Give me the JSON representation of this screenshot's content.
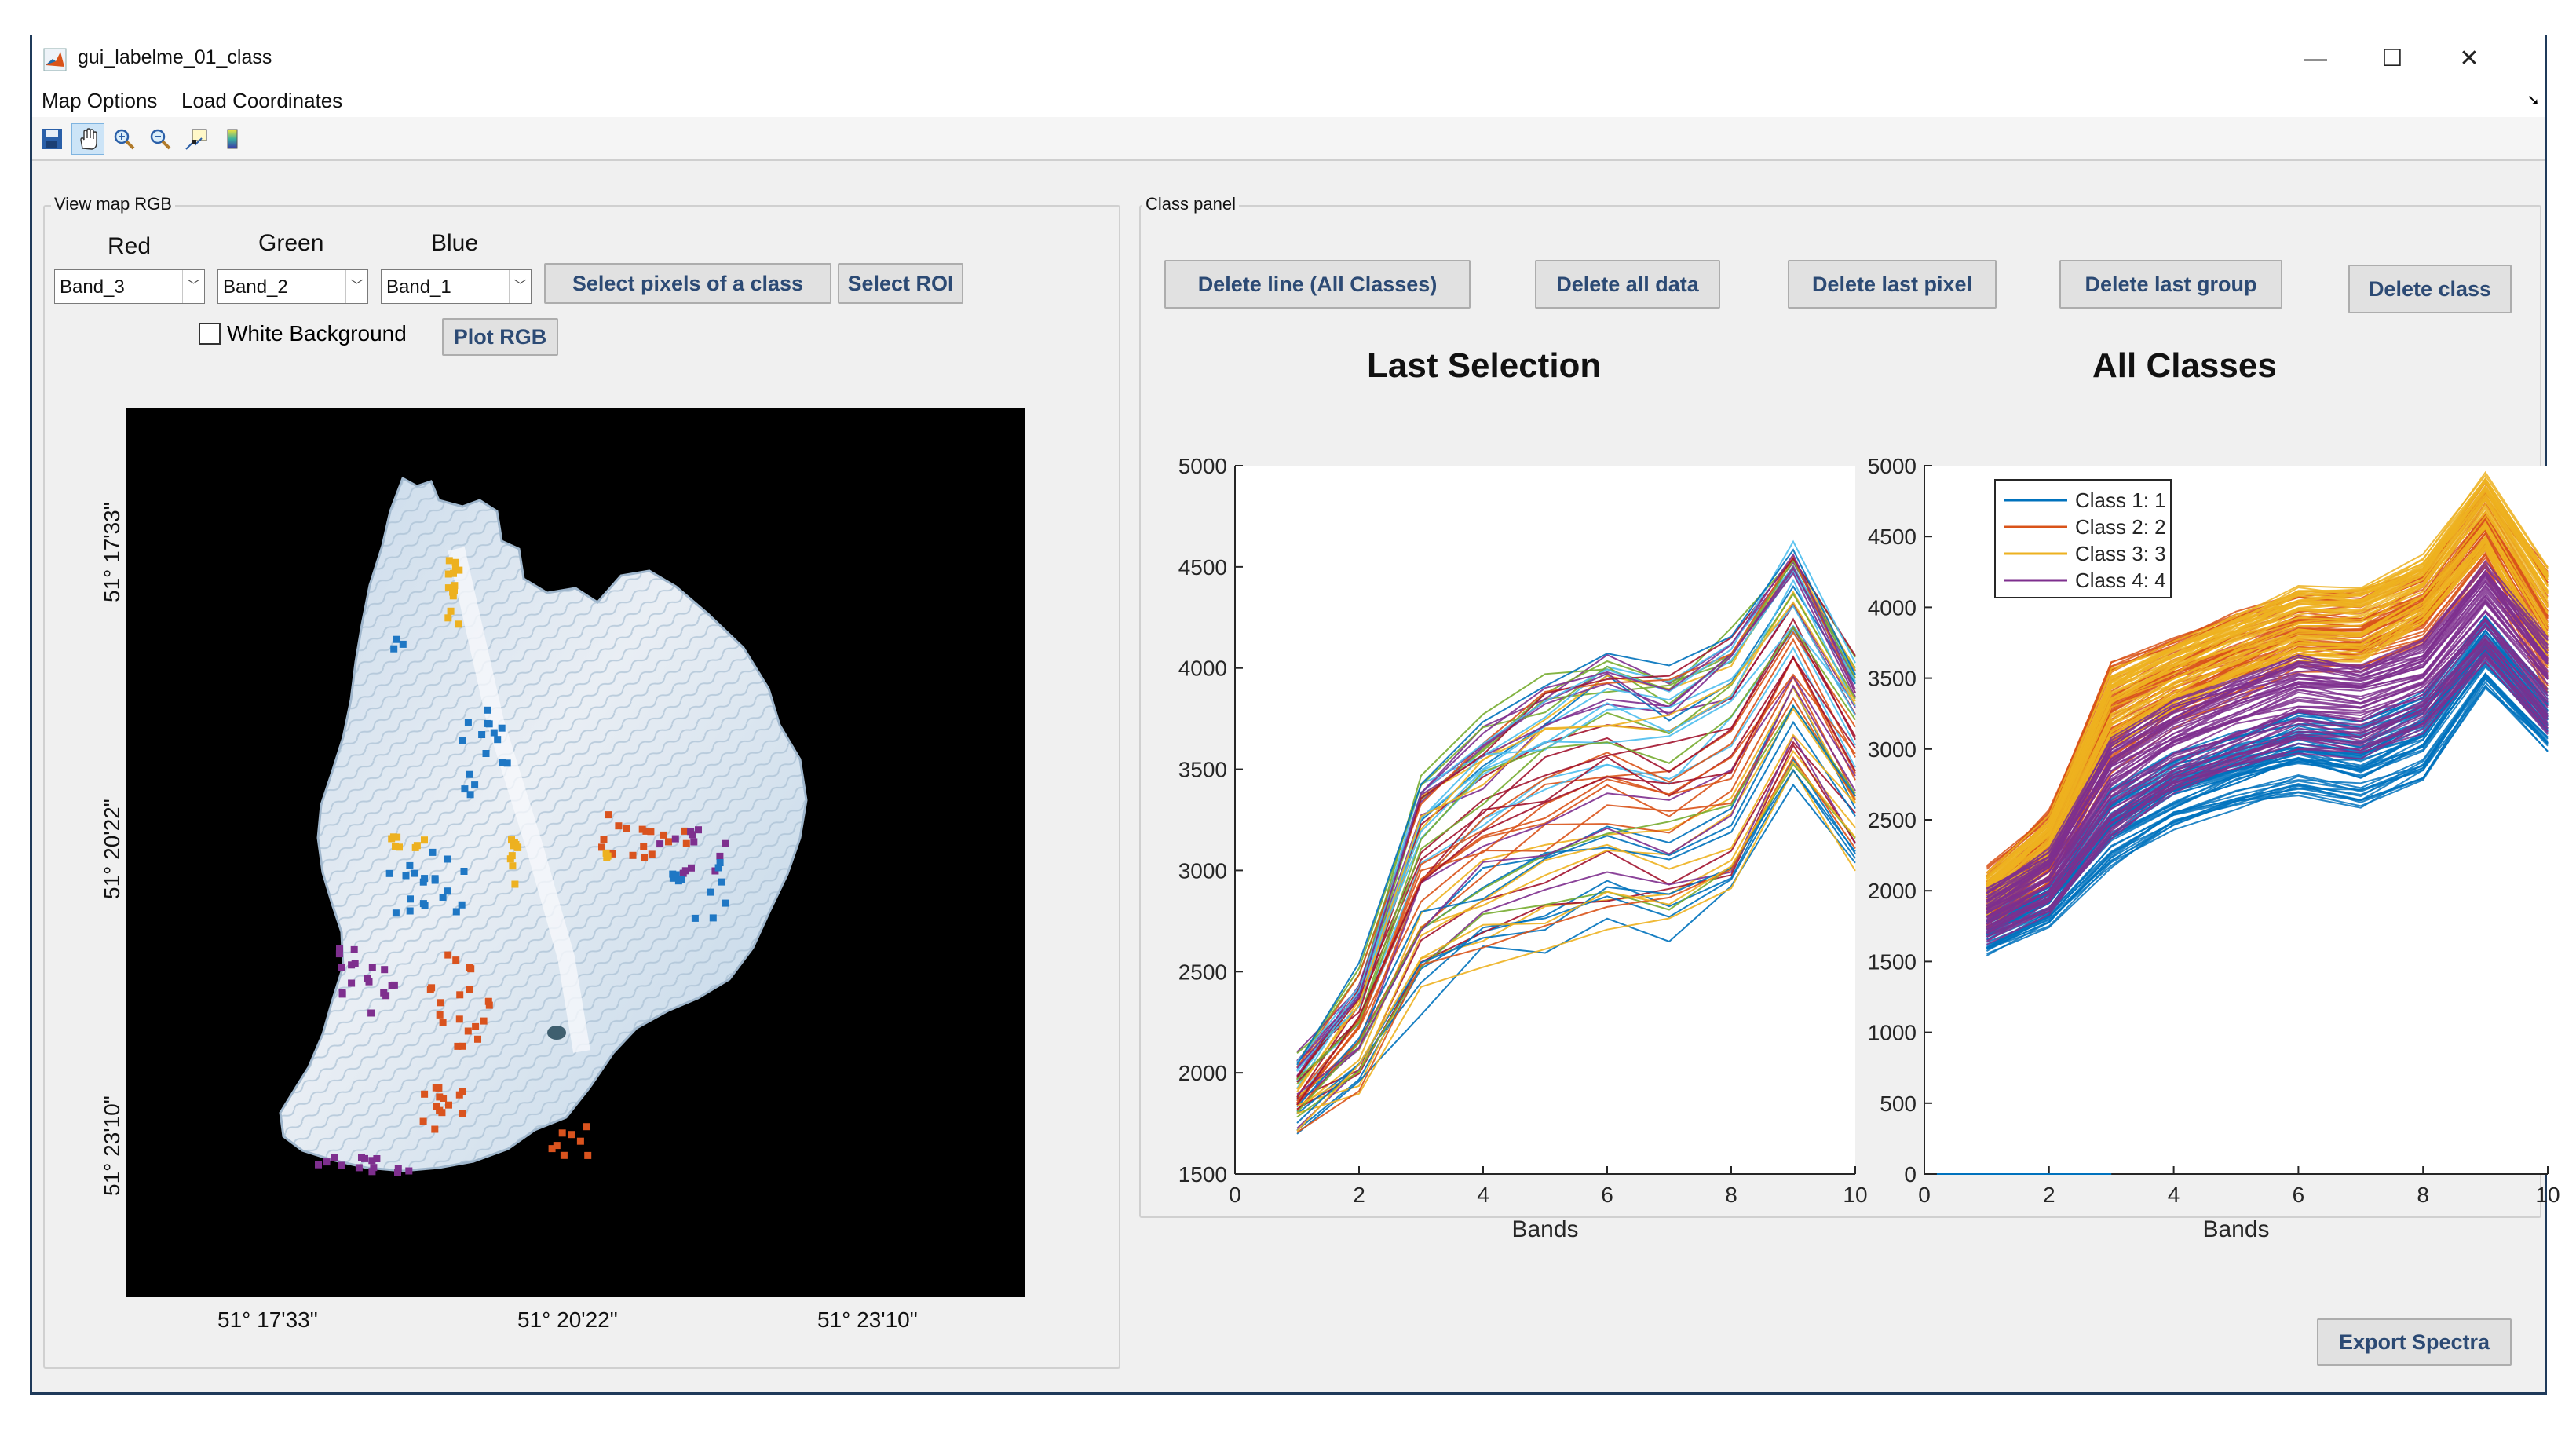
{
  "window": {
    "title": "gui_labelme_01_class",
    "controls": {
      "minimize": "—",
      "maximize": "☐",
      "close": "✕"
    }
  },
  "menu": {
    "items": [
      "Map Options",
      "Load Coordinates"
    ]
  },
  "toolbar": {
    "buttons": [
      "save-icon",
      "pan-hand-icon",
      "zoom-in-icon",
      "zoom-out-icon",
      "data-cursor-icon",
      "colorbar-icon"
    ]
  },
  "left_panel": {
    "title": "View map RGB",
    "red_label": "Red",
    "green_label": "Green",
    "blue_label": "Blue",
    "red_value": "Band_3",
    "green_value": "Band_2",
    "blue_value": "Band_1",
    "select_pixels_button": "Select pixels of a class",
    "select_roi_button": "Select ROI",
    "white_background_label": "White Background",
    "white_background_checked": false,
    "plot_rgb_button": "Plot RGB",
    "map": {
      "x_ticks": [
        "51° 17'33\"",
        "51° 20'22\"",
        "51° 23'10\""
      ],
      "y_ticks": [
        "51° 17'33\"",
        "51° 20'22\"",
        "51° 23'10\""
      ],
      "class_colors": [
        "#1f77c4",
        "#d9531e",
        "#edb120",
        "#7e2f8e"
      ]
    }
  },
  "class_panel": {
    "title": "Class panel",
    "buttons": {
      "delete_line": "Delete line (All Classes)",
      "delete_all": "Delete all data",
      "delete_last_pixel": "Delete last pixel",
      "delete_last_group": "Delete last group",
      "delete_class": "Delete class"
    },
    "export_button": "Export Spectra"
  },
  "chart_data": [
    {
      "type": "line",
      "title": "Last Selection",
      "xlabel": "Bands",
      "ylabel": "",
      "xlim": [
        0,
        10
      ],
      "ylim": [
        1500,
        5000
      ],
      "x_ticks": [
        0,
        2,
        4,
        6,
        8,
        10
      ],
      "y_ticks": [
        1500,
        2000,
        2500,
        3000,
        3500,
        4000,
        4500,
        5000
      ],
      "x": [
        1,
        2,
        3,
        4,
        5,
        6,
        7,
        8,
        9,
        10
      ],
      "series_summary": {
        "count": "many (approx. 60)",
        "min": [
          1720,
          1920,
          2350,
          2550,
          2650,
          2720,
          2680,
          2830,
          3430,
          2990
        ],
        "max": [
          2050,
          2480,
          3470,
          3720,
          3920,
          4060,
          3990,
          4180,
          4600,
          4050
        ],
        "typical": [
          1860,
          2150,
          2850,
          3050,
          3200,
          3380,
          3300,
          3550,
          4250,
          3500
        ]
      },
      "grid": false,
      "legend": null
    },
    {
      "type": "line",
      "title": "All Classes",
      "xlabel": "Bands",
      "ylabel": "",
      "xlim": [
        0,
        10
      ],
      "ylim": [
        0,
        5000
      ],
      "x_ticks": [
        0,
        2,
        4,
        6,
        8,
        10
      ],
      "y_ticks": [
        0,
        500,
        1000,
        1500,
        2000,
        2500,
        3000,
        3500,
        4000,
        4500,
        5000
      ],
      "x": [
        1,
        2,
        3,
        4,
        5,
        6,
        7,
        8,
        9,
        10
      ],
      "series": [
        {
          "name": "Class 1: 1",
          "color": "#0072bd",
          "low": [
            1580,
            1780,
            2200,
            2450,
            2600,
            2700,
            2620,
            2800,
            3450,
            3000
          ],
          "high": [
            1850,
            2080,
            2700,
            2950,
            3100,
            3250,
            3200,
            3400,
            3950,
            3400
          ]
        },
        {
          "name": "Class 2: 2",
          "color": "#d95319",
          "low": [
            1750,
            2050,
            2850,
            3150,
            3350,
            3550,
            3550,
            3750,
            4250,
            3400
          ],
          "high": [
            2150,
            2550,
            3600,
            3800,
            3950,
            4100,
            4100,
            4250,
            4850,
            4250
          ]
        },
        {
          "name": "Class 3: 3",
          "color": "#edb120",
          "low": [
            1850,
            2200,
            3050,
            3300,
            3500,
            3650,
            3650,
            3900,
            4400,
            3600
          ],
          "high": [
            2100,
            2500,
            3550,
            3750,
            3950,
            4150,
            4150,
            4350,
            4950,
            4300
          ]
        },
        {
          "name": "Class 4: 4",
          "color": "#7e2f8e",
          "low": [
            1650,
            1850,
            2400,
            2700,
            2850,
            3000,
            2950,
            3150,
            3600,
            3100
          ],
          "high": [
            2000,
            2300,
            3100,
            3350,
            3550,
            3700,
            3650,
            3800,
            4350,
            3800
          ]
        }
      ],
      "grid": false,
      "legend": "top-left"
    }
  ]
}
